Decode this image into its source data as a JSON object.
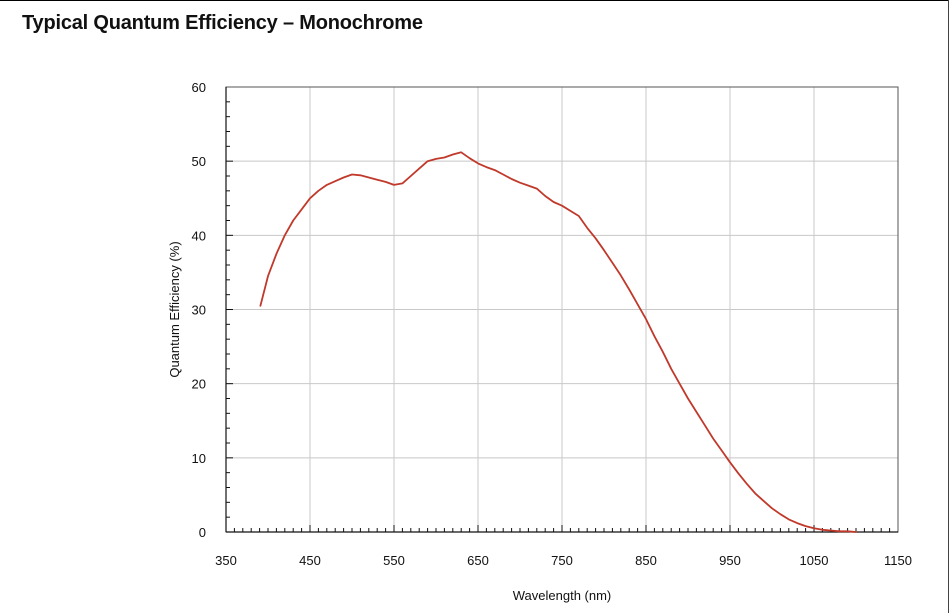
{
  "page": {
    "title": "Typical Quantum Efficiency – Monochrome"
  },
  "chart_data": {
    "type": "line",
    "title": "Typical Quantum Efficiency – Monochrome",
    "xlabel": "Wavelength (nm)",
    "ylabel": "Quantum Efficiency (%)",
    "xlim": [
      350,
      1150
    ],
    "ylim": [
      0,
      60
    ],
    "x_ticks": [
      350,
      450,
      550,
      650,
      750,
      850,
      950,
      1050,
      1150
    ],
    "y_ticks": [
      0,
      10,
      20,
      30,
      40,
      50,
      60
    ],
    "x_tick_labels": [
      "350",
      "450",
      "550",
      "650",
      "750",
      "850",
      "950",
      "1050",
      "1150"
    ],
    "y_tick_labels": [
      "0",
      "10",
      "20",
      "30",
      "40",
      "50",
      "60"
    ],
    "grid": true,
    "series_color": "#c0392b",
    "series": [
      {
        "x": [
          391,
          400,
          410,
          420,
          430,
          440,
          450,
          460,
          470,
          480,
          490,
          500,
          510,
          520,
          530,
          540,
          550,
          560,
          570,
          580,
          590,
          600,
          610,
          620,
          630,
          640,
          650,
          660,
          670,
          680,
          690,
          700,
          710,
          720,
          730,
          740,
          750,
          760,
          770,
          780,
          790,
          800,
          810,
          820,
          830,
          840,
          850,
          860,
          870,
          880,
          890,
          900,
          910,
          920,
          930,
          940,
          950,
          960,
          970,
          980,
          990,
          1000,
          1010,
          1020,
          1030,
          1040,
          1050,
          1060,
          1070,
          1080,
          1090,
          1100
        ],
        "y": [
          30.5,
          34.5,
          37.5,
          40.0,
          42.0,
          43.5,
          45.0,
          46.0,
          46.8,
          47.3,
          47.8,
          48.2,
          48.1,
          47.8,
          47.5,
          47.2,
          46.8,
          47.0,
          48.0,
          49.0,
          50.0,
          50.3,
          50.5,
          50.9,
          51.2,
          50.4,
          49.7,
          49.2,
          48.8,
          48.2,
          47.6,
          47.1,
          46.7,
          46.3,
          45.3,
          44.5,
          44.0,
          43.3,
          42.6,
          41.0,
          39.6,
          38.0,
          36.3,
          34.6,
          32.7,
          30.7,
          28.7,
          26.4,
          24.3,
          22.0,
          20.0,
          18.0,
          16.2,
          14.4,
          12.6,
          11.0,
          9.4,
          7.9,
          6.5,
          5.2,
          4.2,
          3.2,
          2.4,
          1.7,
          1.2,
          0.8,
          0.5,
          0.3,
          0.2,
          0.1,
          0.1,
          0.0
        ]
      }
    ]
  }
}
